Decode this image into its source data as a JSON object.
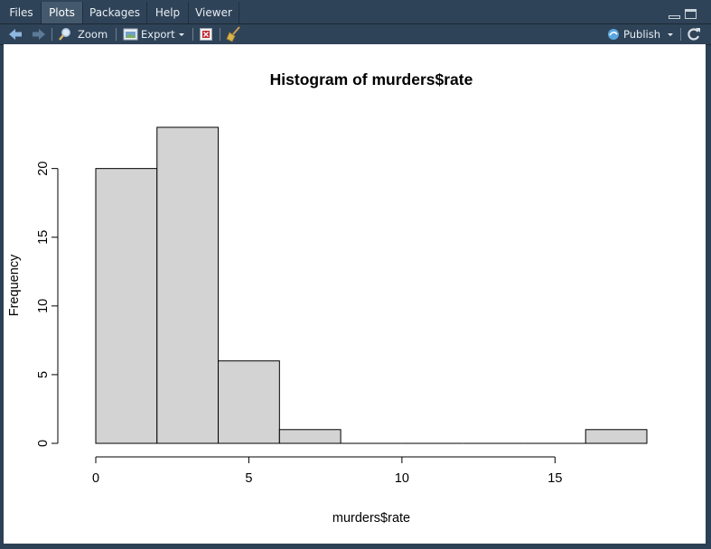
{
  "tabs": [
    {
      "label": "Files"
    },
    {
      "label": "Plots"
    },
    {
      "label": "Packages"
    },
    {
      "label": "Help"
    },
    {
      "label": "Viewer"
    }
  ],
  "active_tab": "Plots",
  "toolbar": {
    "zoom_label": "Zoom",
    "export_label": "Export",
    "publish_label": "Publish"
  },
  "icons": [
    "back-arrow-icon",
    "forward-arrow-icon",
    "zoom-icon",
    "export-icon",
    "remove-plot-icon",
    "broom-icon",
    "publish-icon",
    "refresh-icon",
    "minimize-icon",
    "maximize-icon"
  ],
  "colors": {
    "bar_fill": "#d3d3d3",
    "bar_stroke": "#000000",
    "pane_bg": "#2d4156"
  },
  "chart_data": {
    "type": "bar",
    "title": "Histogram of murders$rate",
    "xlabel": "murders$rate",
    "ylabel": "Frequency",
    "bins": [
      [
        0,
        2
      ],
      [
        2,
        4
      ],
      [
        4,
        6
      ],
      [
        6,
        8
      ],
      [
        8,
        10
      ],
      [
        10,
        12
      ],
      [
        12,
        14
      ],
      [
        14,
        16
      ],
      [
        16,
        18
      ]
    ],
    "values": [
      20,
      23,
      6,
      1,
      0,
      0,
      0,
      0,
      1
    ],
    "xlim": [
      0,
      18
    ],
    "ylim": [
      0,
      23
    ],
    "xticks": [
      0,
      5,
      10,
      15
    ],
    "yticks": [
      0,
      5,
      10,
      15,
      20
    ],
    "grid": false
  }
}
